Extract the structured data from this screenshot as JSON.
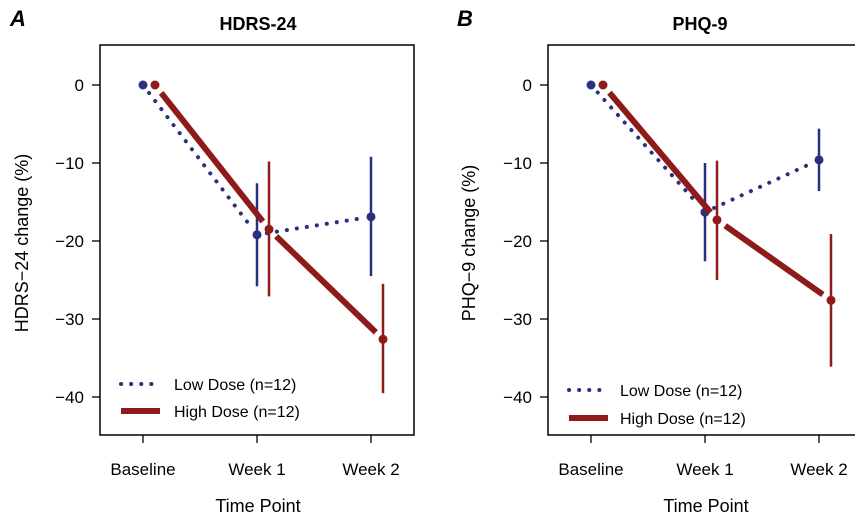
{
  "colors": {
    "low": "#2b2f7e",
    "high": "#8e1a1a"
  },
  "chart_data": [
    {
      "panel": "A",
      "type": "line",
      "title": "HDRS-24",
      "xlabel": "Time Point",
      "ylabel": "HDRS−24 change (%)",
      "categories": [
        "Baseline",
        "Week 1",
        "Week 2"
      ],
      "yticks": [
        "0",
        "−10",
        "−20",
        "−30",
        "−40"
      ],
      "ylim": [
        -44.5,
        5
      ],
      "series": [
        {
          "name": "Low Dose (n=12)",
          "values": [
            0,
            -19.2,
            -16.9
          ],
          "err_low": [
            0,
            -25.8,
            -24.5
          ],
          "err_high": [
            0,
            -12.6,
            -9.2
          ],
          "style": "dotted"
        },
        {
          "name": "High Dose (n=12)",
          "values": [
            0,
            -18.5,
            -32.6
          ],
          "err_low": [
            0,
            -27.1,
            -39.5
          ],
          "err_high": [
            0,
            -9.8,
            -25.5
          ],
          "style": "solid"
        }
      ],
      "legend": "bottom-left"
    },
    {
      "panel": "B",
      "type": "line",
      "title": "PHQ-9",
      "xlabel": "Time Point",
      "ylabel": "PHQ−9 change (%)",
      "categories": [
        "Baseline",
        "Week 1",
        "Week 2"
      ],
      "yticks": [
        "0",
        "−10",
        "−20",
        "−30",
        "−40"
      ],
      "ylim": [
        -44.5,
        5
      ],
      "series": [
        {
          "name": "Low Dose (n=12)",
          "values": [
            0,
            -16.3,
            -9.6
          ],
          "err_low": [
            0,
            -22.6,
            -13.6
          ],
          "err_high": [
            0,
            -10.0,
            -5.6
          ],
          "style": "dotted"
        },
        {
          "name": "High Dose (n=12)",
          "values": [
            0,
            -17.3,
            -27.6
          ],
          "err_low": [
            0,
            -25.0,
            -36.1
          ],
          "err_high": [
            0,
            -9.7,
            -19.1
          ],
          "style": "solid"
        }
      ],
      "legend": "bottom-left"
    }
  ]
}
